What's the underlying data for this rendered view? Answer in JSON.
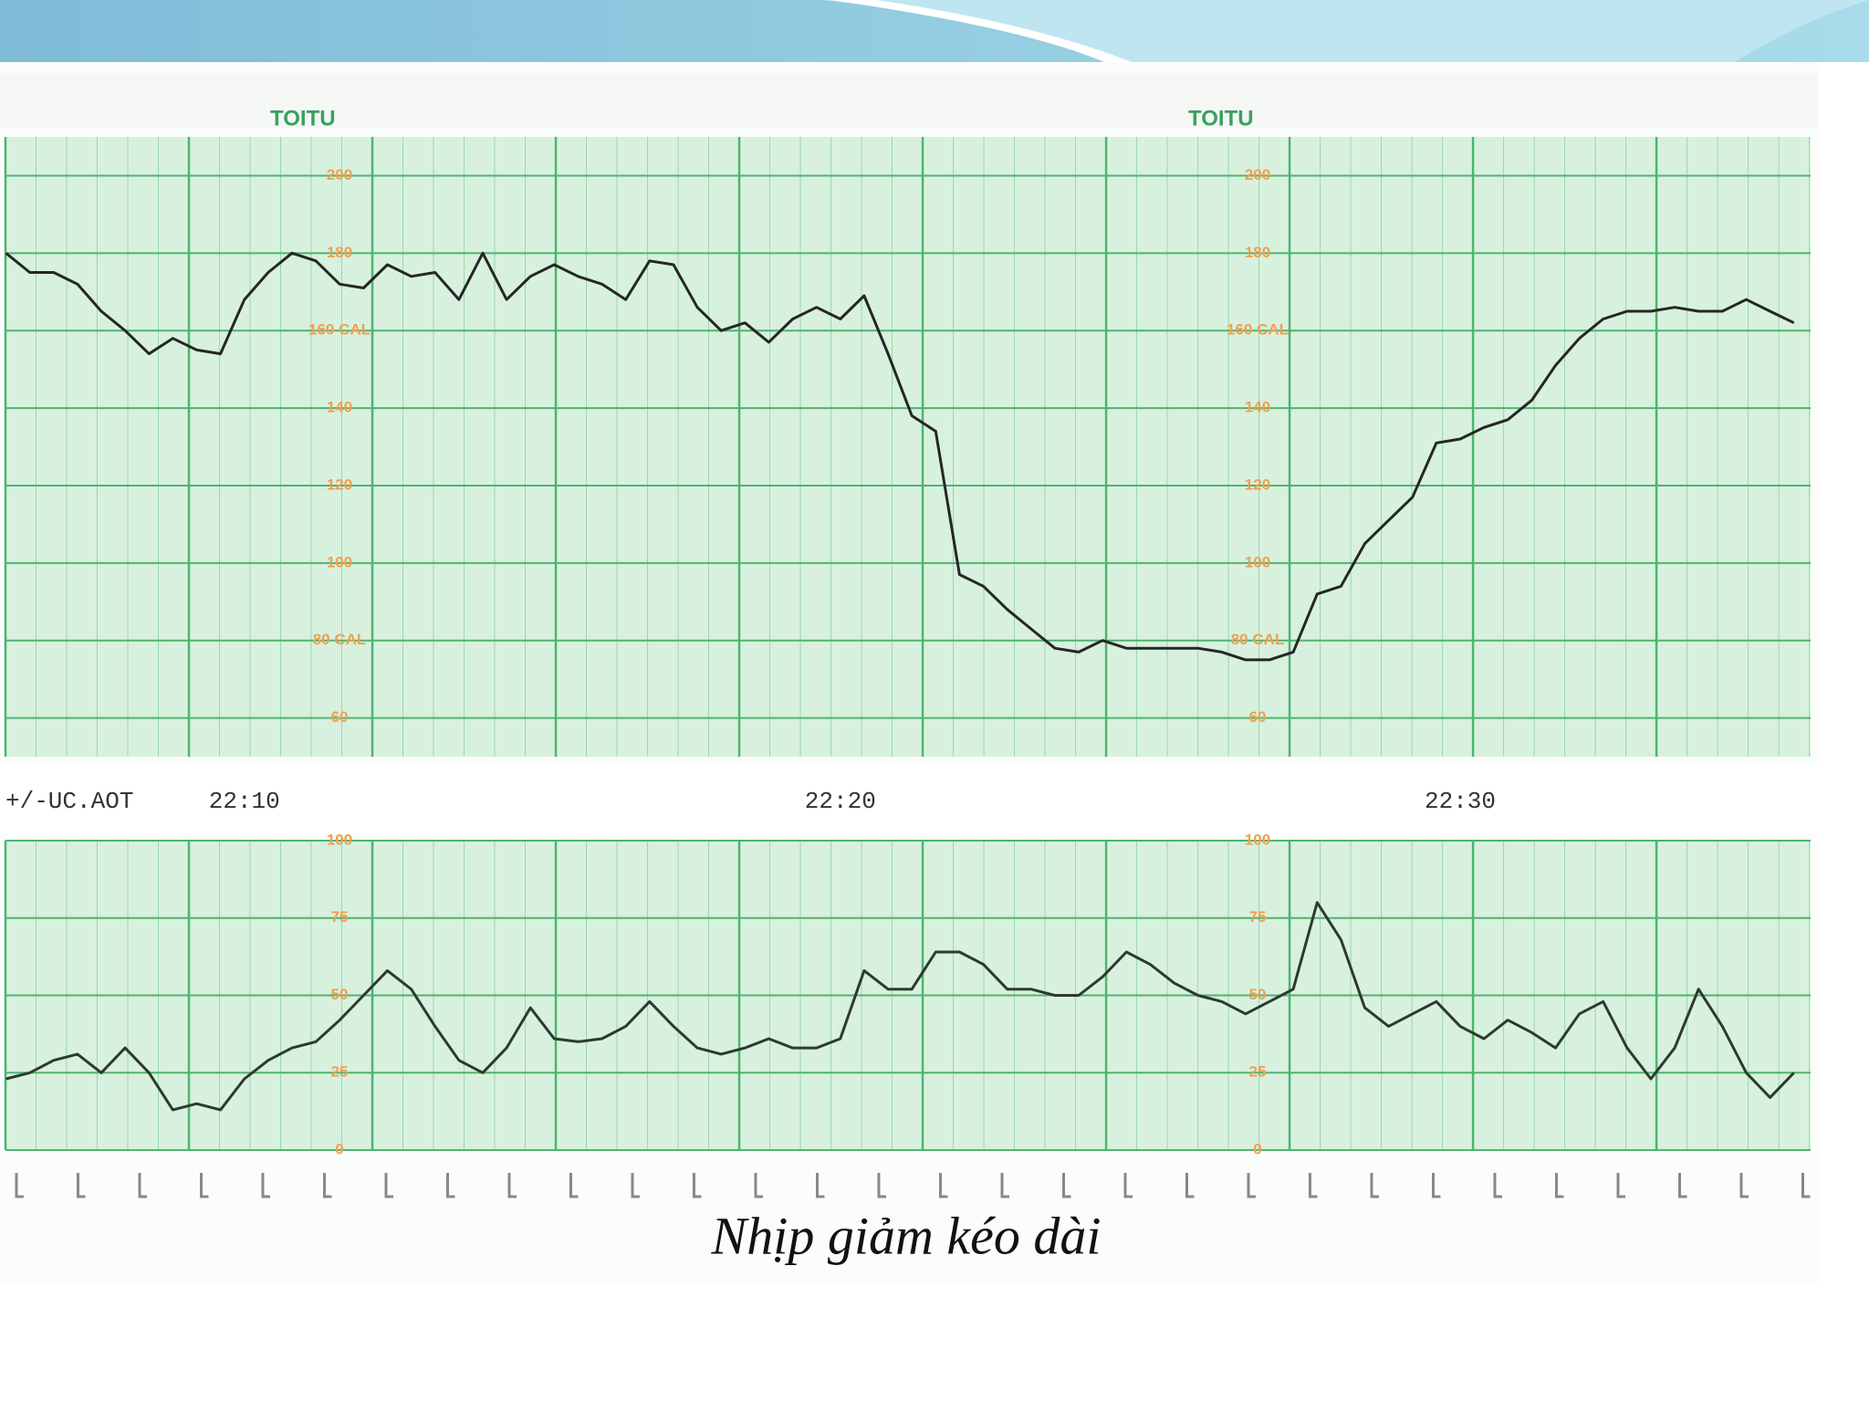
{
  "caption": "Nhịp giảm kéo dài",
  "brand": "TOITU",
  "channel_label": "+/-UC.AOT",
  "chart_data": [
    {
      "type": "line",
      "name": "fhr",
      "color": "#262626",
      "grid": true,
      "ylim": [
        50,
        210
      ],
      "yticks": [
        60,
        {
          "value": 80,
          "label": "80 CAL"
        },
        100,
        120,
        140,
        {
          "value": 160,
          "label": "160 CAL"
        },
        180,
        200
      ],
      "categories": [
        null,
        null,
        null,
        null,
        null,
        null,
        null,
        null,
        null,
        null,
        "22:10",
        null,
        null,
        null,
        null,
        null,
        null,
        null,
        null,
        null,
        null,
        null,
        null,
        null,
        null,
        null,
        null,
        null,
        null,
        null,
        null,
        null,
        null,
        null,
        null,
        "22:20",
        null,
        null,
        null,
        null,
        null,
        null,
        null,
        null,
        null,
        null,
        null,
        null,
        null,
        null,
        null,
        null,
        null,
        null,
        null,
        null,
        null,
        null,
        null,
        null,
        null,
        "22:30",
        null,
        null,
        null,
        null,
        null,
        null,
        null,
        null,
        null,
        null,
        null,
        null,
        null,
        null
      ],
      "values": [
        180,
        175,
        175,
        172,
        165,
        160,
        154,
        158,
        155,
        154,
        168,
        175,
        180,
        178,
        172,
        171,
        177,
        174,
        175,
        168,
        180,
        168,
        174,
        177,
        174,
        172,
        168,
        178,
        177,
        166,
        160,
        162,
        157,
        163,
        166,
        163,
        169,
        154,
        138,
        134,
        97,
        94,
        88,
        83,
        78,
        77,
        80,
        78,
        78,
        78,
        78,
        77,
        75,
        75,
        77,
        92,
        94,
        105,
        111,
        117,
        131,
        132,
        135,
        137,
        142,
        151,
        158,
        163,
        165,
        165,
        166,
        165,
        165,
        168,
        165,
        162
      ]
    },
    {
      "type": "line",
      "name": "uc",
      "color": "#2e3a2e",
      "grid": true,
      "ylim": [
        0,
        100
      ],
      "yticks": [
        0,
        25,
        50,
        75,
        100
      ],
      "values": [
        23,
        25,
        29,
        31,
        25,
        33,
        25,
        13,
        15,
        13,
        23,
        29,
        33,
        35,
        42,
        50,
        58,
        52,
        40,
        29,
        25,
        33,
        46,
        36,
        35,
        36,
        40,
        48,
        40,
        33,
        31,
        33,
        36,
        33,
        33,
        36,
        58,
        52,
        52,
        64,
        64,
        60,
        52,
        52,
        50,
        50,
        56,
        64,
        60,
        54,
        50,
        48,
        44,
        48,
        52,
        80,
        68,
        46,
        40,
        44,
        48,
        40,
        36,
        42,
        38,
        33,
        44,
        48,
        33,
        23,
        33,
        52,
        40,
        25,
        17,
        25
      ]
    }
  ]
}
